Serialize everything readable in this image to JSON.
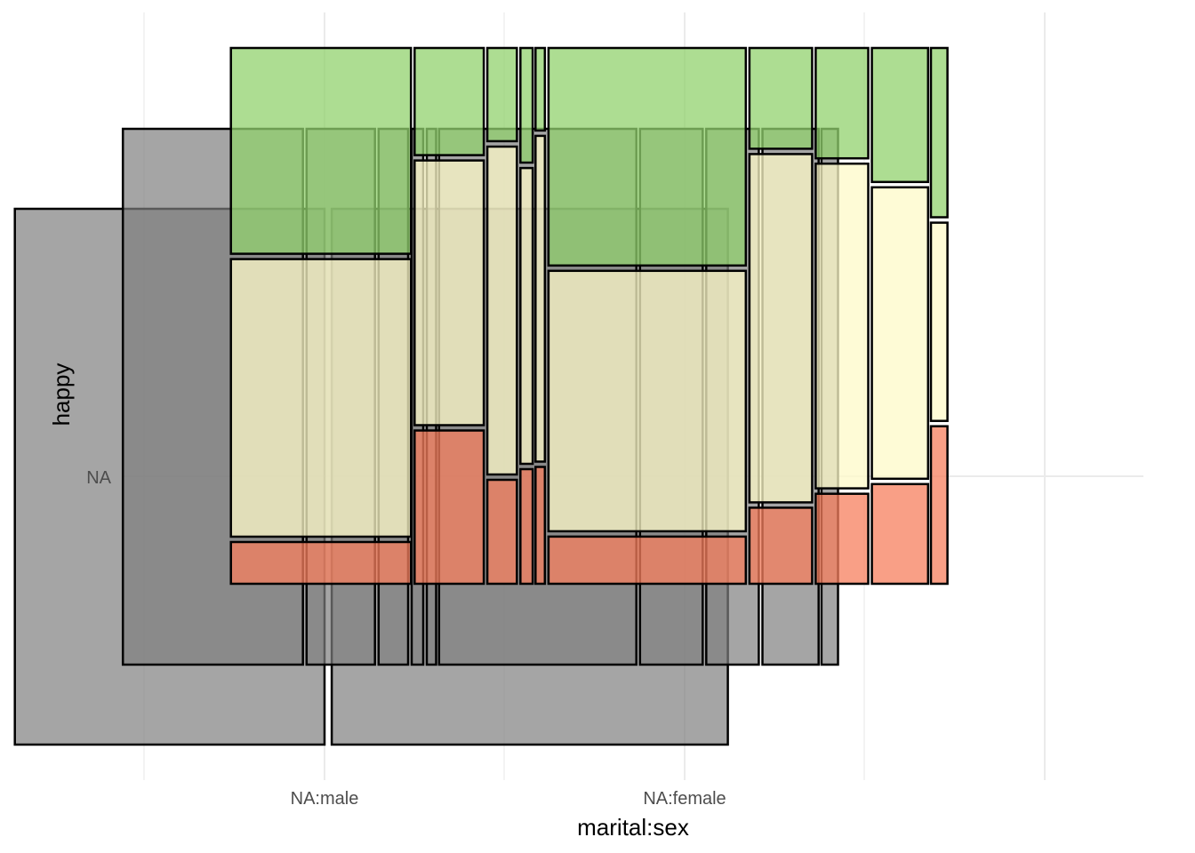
{
  "chart_data": {
    "type": "mosaic",
    "xlabel": "marital:sex",
    "ylabel": "happy",
    "x_tick_labels": [
      "NA:male",
      "NA:female"
    ],
    "y_tick_labels": [
      "NA"
    ],
    "grid": true,
    "theme": "minimal",
    "colors": {
      "grey_layer": "#7f7f7f",
      "very_happy": "#91d16e",
      "pretty_happy": "#fdf9c8",
      "not_too_happy": "#f77f5e",
      "outline": "#000000",
      "grid": "#ebebeb"
    },
    "layers": [
      {
        "name": "grey-back",
        "fill_key": "grey_layer",
        "opacity": 0.7,
        "tiles": [
          {
            "x": [
              -0.43,
              0.0
            ],
            "y": [
              0.5,
              1.0
            ]
          },
          {
            "x": [
              0.01,
              0.56
            ],
            "y": [
              0.5,
              1.0
            ]
          }
        ]
      },
      {
        "name": "grey-mid",
        "fill_key": "grey_layer",
        "opacity": 0.7,
        "tiles": [
          {
            "x": [
              -0.28,
              -0.03
            ],
            "y": [
              0.5,
              1.0
            ]
          },
          {
            "x": [
              -0.025,
              0.07
            ],
            "y": [
              0.5,
              1.0
            ]
          },
          {
            "x": [
              0.075,
              0.116
            ],
            "y": [
              0.5,
              1.0
            ]
          },
          {
            "x": [
              0.121,
              0.137
            ],
            "y": [
              0.5,
              1.0
            ]
          },
          {
            "x": [
              0.142,
              0.155
            ],
            "y": [
              0.5,
              1.0
            ]
          },
          {
            "x": [
              0.159,
              0.433
            ],
            "y": [
              0.5,
              1.0
            ]
          },
          {
            "x": [
              0.438,
              0.525
            ],
            "y": [
              0.5,
              1.0
            ]
          },
          {
            "x": [
              0.53,
              0.603
            ],
            "y": [
              0.5,
              1.0
            ]
          },
          {
            "x": [
              0.608,
              0.686
            ],
            "y": [
              0.5,
              1.0
            ]
          },
          {
            "x": [
              0.69,
              0.713
            ],
            "y": [
              0.5,
              1.0
            ]
          }
        ]
      },
      {
        "name": "happy-front",
        "opacity": 0.75,
        "tiles": [
          {
            "x": [
              -0.13,
              0.12
            ],
            "y": [
              0.5,
              0.692
            ],
            "fill_key": "very_happy"
          },
          {
            "x": [
              -0.13,
              0.12
            ],
            "y": [
              0.697,
              0.956
            ],
            "fill_key": "pretty_happy"
          },
          {
            "x": [
              -0.13,
              0.12
            ],
            "y": [
              0.961,
              1.0
            ],
            "fill_key": "not_too_happy"
          },
          {
            "x": [
              0.125,
              0.221
            ],
            "y": [
              0.5,
              0.6
            ],
            "fill_key": "very_happy"
          },
          {
            "x": [
              0.125,
              0.221
            ],
            "y": [
              0.605,
              0.852
            ],
            "fill_key": "pretty_happy"
          },
          {
            "x": [
              0.125,
              0.221
            ],
            "y": [
              0.857,
              1.0
            ],
            "fill_key": "not_too_happy"
          },
          {
            "x": [
              0.226,
              0.267
            ],
            "y": [
              0.5,
              0.587
            ],
            "fill_key": "very_happy"
          },
          {
            "x": [
              0.226,
              0.267
            ],
            "y": [
              0.592,
              0.898
            ],
            "fill_key": "pretty_happy"
          },
          {
            "x": [
              0.226,
              0.267
            ],
            "y": [
              0.903,
              1.0
            ],
            "fill_key": "not_too_happy"
          },
          {
            "x": [
              0.272,
              0.289
            ],
            "y": [
              0.5,
              0.607
            ],
            "fill_key": "very_happy"
          },
          {
            "x": [
              0.272,
              0.289
            ],
            "y": [
              0.612,
              0.888
            ],
            "fill_key": "pretty_happy"
          },
          {
            "x": [
              0.272,
              0.289
            ],
            "y": [
              0.893,
              1.0
            ],
            "fill_key": "not_too_happy"
          },
          {
            "x": [
              0.293,
              0.306
            ],
            "y": [
              0.5,
              0.577
            ],
            "fill_key": "very_happy"
          },
          {
            "x": [
              0.293,
              0.306
            ],
            "y": [
              0.582,
              0.886
            ],
            "fill_key": "pretty_happy"
          },
          {
            "x": [
              0.293,
              0.306
            ],
            "y": [
              0.891,
              1.0
            ],
            "fill_key": "not_too_happy"
          },
          {
            "x": [
              0.311,
              0.585
            ],
            "y": [
              0.5,
              0.703
            ],
            "fill_key": "very_happy"
          },
          {
            "x": [
              0.311,
              0.585
            ],
            "y": [
              0.708,
              0.951
            ],
            "fill_key": "pretty_happy"
          },
          {
            "x": [
              0.311,
              0.585
            ],
            "y": [
              0.956,
              1.0
            ],
            "fill_key": "not_too_happy"
          },
          {
            "x": [
              0.59,
              0.677
            ],
            "y": [
              0.5,
              0.594
            ],
            "fill_key": "very_happy"
          },
          {
            "x": [
              0.59,
              0.677
            ],
            "y": [
              0.599,
              0.924
            ],
            "fill_key": "pretty_happy"
          },
          {
            "x": [
              0.59,
              0.677
            ],
            "y": [
              0.929,
              1.0
            ],
            "fill_key": "not_too_happy"
          },
          {
            "x": [
              0.682,
              0.755
            ],
            "y": [
              0.5,
              0.603
            ],
            "fill_key": "very_happy"
          },
          {
            "x": [
              0.682,
              0.755
            ],
            "y": [
              0.608,
              0.911
            ],
            "fill_key": "pretty_happy"
          },
          {
            "x": [
              0.682,
              0.755
            ],
            "y": [
              0.916,
              1.0
            ],
            "fill_key": "not_too_happy"
          },
          {
            "x": [
              0.76,
              0.838
            ],
            "y": [
              0.5,
              0.625
            ],
            "fill_key": "very_happy"
          },
          {
            "x": [
              0.76,
              0.838
            ],
            "y": [
              0.63,
              0.902
            ],
            "fill_key": "pretty_happy"
          },
          {
            "x": [
              0.76,
              0.838
            ],
            "y": [
              0.907,
              1.0
            ],
            "fill_key": "not_too_happy"
          },
          {
            "x": [
              0.842,
              0.865
            ],
            "y": [
              0.5,
              0.658
            ],
            "fill_key": "very_happy"
          },
          {
            "x": [
              0.842,
              0.865
            ],
            "y": [
              0.663,
              0.848
            ],
            "fill_key": "pretty_happy"
          },
          {
            "x": [
              0.842,
              0.865
            ],
            "y": [
              0.853,
              1.0
            ],
            "fill_key": "not_too_happy"
          }
        ]
      }
    ]
  }
}
